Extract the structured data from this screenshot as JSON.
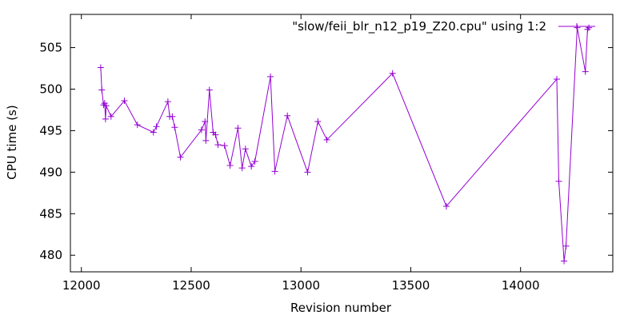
{
  "chart_data": {
    "type": "line",
    "title": "",
    "xlabel": "Revision number",
    "ylabel": "CPU time (s)",
    "xlim": [
      11950,
      14420
    ],
    "ylim": [
      478,
      509
    ],
    "x_ticks": [
      12000,
      12500,
      13000,
      13500,
      14000
    ],
    "y_ticks": [
      480,
      485,
      490,
      495,
      500,
      505
    ],
    "grid": false,
    "legend_position": "top-right",
    "series": [
      {
        "name": "\"slow/feii_blr_n12_p19_Z20.cpu\" using 1:2",
        "color": "#9400d3",
        "marker": "plus",
        "x": [
          12088,
          12093,
          12101,
          12106,
          12110,
          12113,
          12135,
          12196,
          12255,
          12328,
          12342,
          12394,
          12402,
          12414,
          12425,
          12451,
          12547,
          12563,
          12567,
          12583,
          12600,
          12611,
          12622,
          12652,
          12677,
          12713,
          12732,
          12747,
          12774,
          12790,
          12861,
          12881,
          12938,
          13030,
          13077,
          13118,
          13417,
          13662,
          14165,
          14174,
          14198,
          14207,
          14258,
          14295,
          14305,
          14311
        ],
        "y": [
          502.6,
          499.9,
          498.1,
          498.3,
          496.4,
          498.0,
          496.7,
          498.6,
          495.7,
          494.8,
          495.5,
          498.5,
          496.7,
          496.7,
          495.4,
          491.8,
          495.1,
          496.1,
          493.8,
          499.9,
          494.8,
          494.5,
          493.3,
          493.2,
          490.8,
          495.3,
          490.5,
          492.8,
          490.7,
          491.3,
          501.5,
          490.1,
          496.8,
          490.0,
          496.1,
          493.9,
          501.9,
          485.9,
          501.2,
          488.9,
          479.3,
          481.1,
          507.4,
          502.1,
          507.2,
          507.4
        ]
      }
    ]
  }
}
